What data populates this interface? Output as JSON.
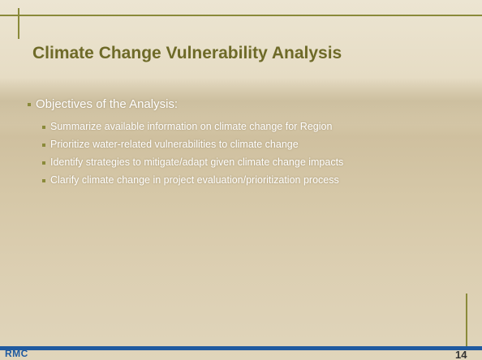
{
  "header": {
    "title": "Climate Change Vulnerability Analysis"
  },
  "body": {
    "bullet": "Objectives of the Analysis:",
    "subitems": [
      "Summarize available information on climate change for Region",
      "Prioritize water-related vulnerabilities to climate change",
      "Identify strategies to mitigate/adapt given climate change impacts",
      "Clarify climate change in  project evaluation/prioritization process"
    ]
  },
  "footer": {
    "logo": "RMC",
    "page_number": "14"
  }
}
